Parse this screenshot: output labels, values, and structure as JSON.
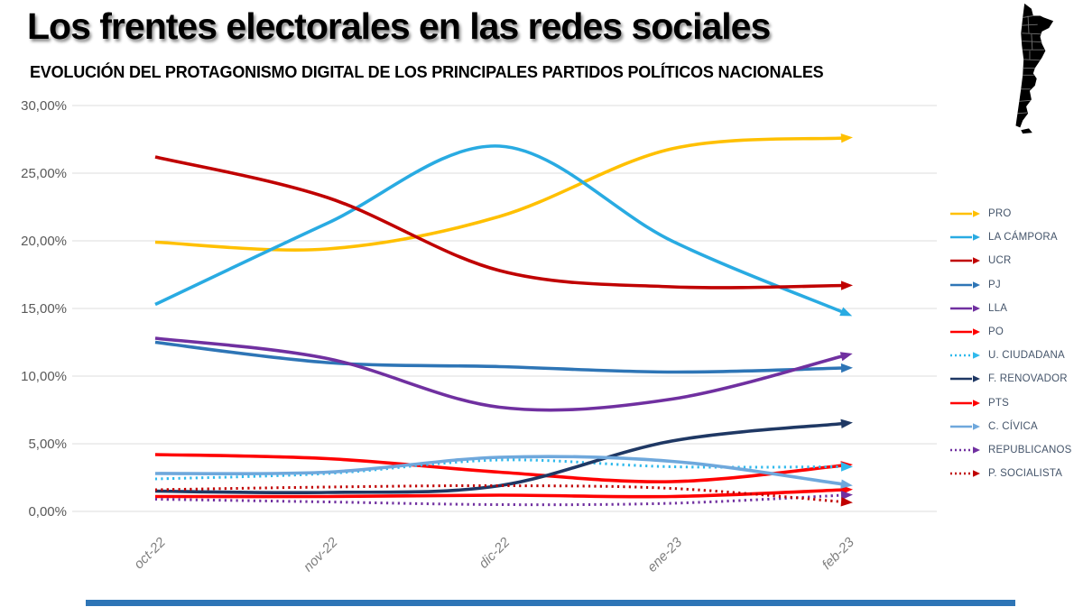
{
  "header": {
    "title": "Los frentes electorales en las redes sociales",
    "subtitle": "EVOLUCIÓN DEL PROTAGONISMO DIGITAL DE LOS PRINCIPALES PARTIDOS POLÍTICOS NACIONALES"
  },
  "map_icon": {
    "country": "Argentina",
    "fill": "#000000",
    "border_color": "#7f7f7f"
  },
  "chart_data": {
    "type": "line",
    "x": [
      "oct-22",
      "nov-22",
      "dic-22",
      "ene-23",
      "feb-23"
    ],
    "y_tick_labels": [
      "0,00%",
      "5,00%",
      "10,00%",
      "15,00%",
      "20,00%",
      "25,00%",
      "30,00%"
    ],
    "ylim": [
      0,
      30
    ],
    "grid": true,
    "grid_color": "#DCDCDC",
    "axis_text_color": "#595959",
    "x_text_color": "#7F7F7F",
    "legend_position": "right",
    "legend_text_color": "#44546A",
    "series": [
      {
        "name": "PRO",
        "color": "#FFC000",
        "style": "solid",
        "values": [
          19.9,
          19.4,
          21.8,
          26.8,
          27.6
        ]
      },
      {
        "name": "LA CÁMPORA",
        "color": "#29ABE2",
        "style": "solid",
        "values": [
          15.3,
          21.3,
          27.0,
          20.0,
          14.7
        ]
      },
      {
        "name": "UCR",
        "color": "#C00000",
        "style": "solid",
        "values": [
          26.2,
          23.2,
          17.8,
          16.6,
          16.7
        ]
      },
      {
        "name": "PJ",
        "color": "#2E75B6",
        "style": "solid",
        "values": [
          12.5,
          11.0,
          10.7,
          10.3,
          10.6
        ]
      },
      {
        "name": "LLA",
        "color": "#7030A0",
        "style": "solid",
        "values": [
          12.8,
          11.3,
          7.7,
          8.3,
          11.5
        ]
      },
      {
        "name": "PO",
        "color": "#FF0000",
        "style": "solid",
        "values": [
          4.2,
          3.9,
          2.9,
          2.2,
          3.4
        ]
      },
      {
        "name": "U. CIUDADANA",
        "color": "#2FB9EC",
        "style": "dotted",
        "values": [
          2.4,
          2.8,
          3.8,
          3.3,
          3.3
        ]
      },
      {
        "name": "F. RENOVADOR",
        "color": "#1F3864",
        "style": "solid",
        "values": [
          1.5,
          1.4,
          1.9,
          5.2,
          6.5
        ]
      },
      {
        "name": "PTS",
        "color": "#FF0000",
        "style": "solid",
        "values": [
          1.1,
          1.1,
          1.2,
          1.1,
          1.6
        ]
      },
      {
        "name": "C. CÍVICA",
        "color": "#6FA8DC",
        "style": "solid",
        "values": [
          2.8,
          2.9,
          4.0,
          3.7,
          2.0
        ]
      },
      {
        "name": "REPUBLICANOS",
        "color": "#7030A0",
        "style": "dotted",
        "values": [
          0.9,
          0.7,
          0.5,
          0.6,
          1.2
        ]
      },
      {
        "name": "P. SOCIALISTA",
        "color": "#C00000",
        "style": "dotted",
        "values": [
          1.6,
          1.8,
          1.9,
          1.7,
          0.7
        ]
      }
    ]
  },
  "footer": {
    "bar_color": "#2E75B6"
  }
}
